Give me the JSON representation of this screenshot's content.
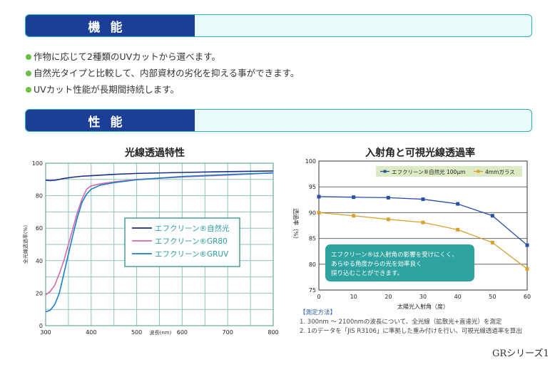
{
  "sections": {
    "function_title": "機能",
    "performance_title": "性能"
  },
  "bullets": [
    "作物に応じて2種類のUVカットから選べます。",
    "自然光タイプと比較して、内部資材の劣化を抑える事ができます。",
    "UVカット性能が長期間持続します。"
  ],
  "chart_data": [
    {
      "type": "line",
      "title": "光線透過特性",
      "xlabel": "波長(nm)",
      "ylabel": "全光線透過率(%)",
      "xlim": [
        300,
        800
      ],
      "ylim": [
        0,
        100
      ],
      "xticks": [
        300,
        400,
        500,
        600,
        700,
        800
      ],
      "yticks": [
        0,
        20,
        40,
        60,
        80,
        100
      ],
      "grid": true,
      "legend": "center-right",
      "series": [
        {
          "name": "エフクリーン®自然光",
          "color": "#1b2f8a",
          "x": [
            300,
            310,
            320,
            340,
            360,
            380,
            400,
            450,
            500,
            600,
            700,
            800
          ],
          "y": [
            89.5,
            89.3,
            89.5,
            90.6,
            91.4,
            92,
            92.3,
            93.1,
            93.7,
            94.3,
            94.8,
            95.2
          ]
        },
        {
          "name": "エフクリーン®GR80",
          "color": "#d46aa8",
          "x": [
            300,
            310,
            320,
            330,
            340,
            350,
            360,
            370,
            380,
            390,
            400,
            420,
            450,
            500,
            600,
            700,
            800
          ],
          "y": [
            19,
            21,
            25,
            32,
            40,
            50,
            60,
            70,
            78,
            84,
            86,
            87.3,
            88.5,
            90,
            91.5,
            92.7,
            94
          ]
        },
        {
          "name": "エフクリーン®GRUV",
          "color": "#1a7cc8",
          "x": [
            300,
            310,
            320,
            330,
            340,
            350,
            360,
            370,
            380,
            390,
            400,
            420,
            450,
            500,
            600,
            700,
            800
          ],
          "y": [
            8.5,
            9.5,
            13,
            20,
            32,
            44,
            56,
            67,
            76,
            81,
            84,
            86.5,
            88,
            89.8,
            91.8,
            93,
            94
          ]
        }
      ]
    },
    {
      "type": "line",
      "title": "入射角と可視光線透過率",
      "xlabel": "太陽光入射角（度）",
      "ylabel": "透過率（%）",
      "xlim": [
        0,
        60
      ],
      "ylim": [
        75,
        100
      ],
      "xticks": [
        0,
        10,
        20,
        30,
        40,
        50,
        60
      ],
      "yticks": [
        75,
        80,
        85,
        90,
        95,
        100
      ],
      "grid": true,
      "legend": "top",
      "series": [
        {
          "name": "エフクリーン®自然光 100μm",
          "color": "#2a4fa8",
          "x": [
            0,
            10,
            20,
            30,
            40,
            50,
            60
          ],
          "y": [
            93.1,
            93.0,
            92.9,
            92.6,
            91.7,
            89.4,
            83.7
          ]
        },
        {
          "name": "4mmガラス",
          "color": "#d9a030",
          "x": [
            0,
            10,
            20,
            30,
            40,
            50,
            60
          ],
          "y": [
            90.0,
            89.4,
            88.7,
            88.1,
            86.7,
            84.2,
            79.1
          ]
        }
      ],
      "annotation": [
        "エフクリーン®は入射角の影響を受けにくく、",
        "あらゆる角度からの光を効率良く",
        "採り込むことができます。"
      ]
    }
  ],
  "notes": {
    "heading": "【測定方法】",
    "items": [
      "1. 300nm ～ 2100nmの波長について、全光線（拡散光+直達光）を測定",
      "2. 1のデータを「JIS R3106」に準拠した重み付けを行い、可視光線透過率を算出"
    ]
  },
  "footer": "GRシリーズ1"
}
